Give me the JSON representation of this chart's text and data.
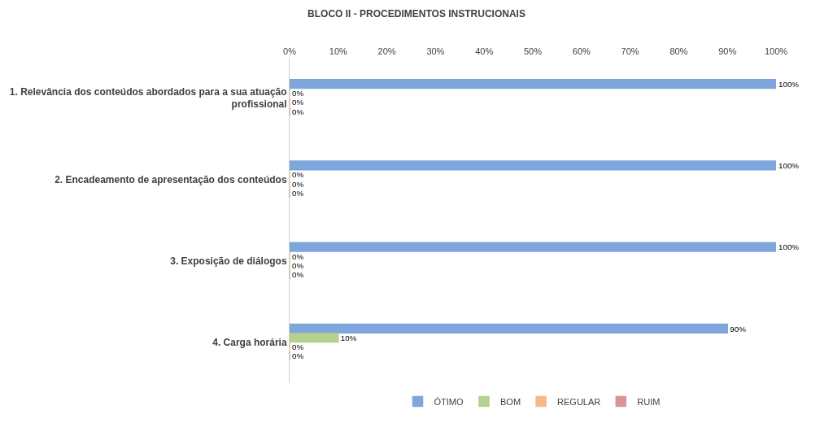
{
  "chart_data": {
    "type": "bar",
    "orientation": "horizontal",
    "title": "BLOCO II - PROCEDIMENTOS INSTRUCIONAIS",
    "categories": [
      "1. Relevância dos conteúdos abordados para a sua atuação profissional",
      "2. Encadeamento de apresentação dos conteúdos",
      "3. Exposição de diálogos",
      "4. Carga horária"
    ],
    "series": [
      {
        "name": "ÓTIMO",
        "color": "#7fa6dc",
        "values": [
          100,
          100,
          100,
          90
        ],
        "value_labels": [
          "100%",
          "100%",
          "100%",
          "90%"
        ]
      },
      {
        "name": "BOM",
        "color": "#b5d18f",
        "values": [
          0,
          0,
          0,
          10
        ],
        "value_labels": [
          "0%",
          "0%",
          "0%",
          "10%"
        ]
      },
      {
        "name": "REGULAR",
        "color": "#f5b88a",
        "values": [
          0,
          0,
          0,
          0
        ],
        "value_labels": [
          "0%",
          "0%",
          "0%",
          "0%"
        ]
      },
      {
        "name": "RUIM",
        "color": "#d99594",
        "values": [
          0,
          0,
          0,
          0
        ],
        "value_labels": [
          "0%",
          "0%",
          "0%",
          "0%"
        ]
      }
    ],
    "xlim": [
      0,
      100
    ],
    "xticks": [
      {
        "value": 0,
        "label": "0%"
      },
      {
        "value": 10,
        "label": "10%"
      },
      {
        "value": 20,
        "label": "20%"
      },
      {
        "value": 30,
        "label": "30%"
      },
      {
        "value": 40,
        "label": "40%"
      },
      {
        "value": 50,
        "label": "50%"
      },
      {
        "value": 60,
        "label": "60%"
      },
      {
        "value": 70,
        "label": "70%"
      },
      {
        "value": 80,
        "label": "80%"
      },
      {
        "value": 90,
        "label": "90%"
      },
      {
        "value": 100,
        "label": "100%"
      }
    ],
    "legend": "bottom"
  }
}
